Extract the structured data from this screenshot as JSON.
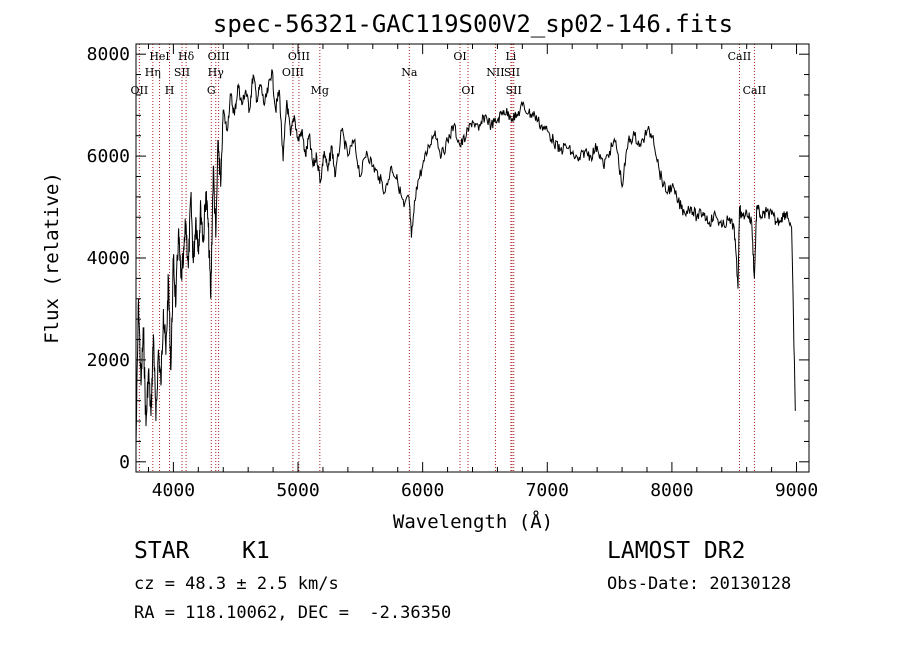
{
  "chart_data": {
    "type": "line",
    "title": "spec-56321-GAC119S00V2_sp02-146.fits",
    "xlabel": "Wavelength (Å)",
    "ylabel": "Flux (relative)",
    "xlim": [
      3700,
      9100
    ],
    "ylim": [
      -200,
      8200
    ],
    "x_ticks": [
      4000,
      5000,
      6000,
      7000,
      8000,
      9000
    ],
    "x_tick_labels": [
      "4000",
      "5000",
      "6000",
      "7000",
      "8000",
      "9000"
    ],
    "y_ticks": [
      0,
      2000,
      4000,
      6000,
      8000
    ],
    "y_tick_labels": [
      "0",
      "2000",
      "4000",
      "6000",
      "8000"
    ],
    "series": [
      {
        "name": "flux",
        "x": [
          3700,
          3720,
          3740,
          3760,
          3780,
          3800,
          3820,
          3840,
          3860,
          3880,
          3900,
          3920,
          3940,
          3960,
          3980,
          4000,
          4020,
          4040,
          4060,
          4080,
          4100,
          4120,
          4140,
          4160,
          4180,
          4200,
          4220,
          4240,
          4260,
          4280,
          4300,
          4320,
          4340,
          4360,
          4380,
          4400,
          4430,
          4460,
          4490,
          4520,
          4550,
          4580,
          4610,
          4640,
          4670,
          4700,
          4730,
          4760,
          4790,
          4820,
          4850,
          4880,
          4910,
          4940,
          4970,
          5000,
          5030,
          5060,
          5090,
          5120,
          5150,
          5180,
          5210,
          5240,
          5270,
          5300,
          5350,
          5400,
          5450,
          5500,
          5550,
          5600,
          5650,
          5700,
          5750,
          5800,
          5850,
          5890,
          5910,
          5950,
          6000,
          6050,
          6100,
          6150,
          6200,
          6250,
          6300,
          6350,
          6400,
          6450,
          6500,
          6550,
          6600,
          6650,
          6700,
          6750,
          6800,
          6850,
          6900,
          6950,
          7000,
          7050,
          7100,
          7150,
          7200,
          7250,
          7300,
          7350,
          7400,
          7450,
          7500,
          7550,
          7600,
          7650,
          7700,
          7750,
          7800,
          7850,
          7900,
          7950,
          8000,
          8050,
          8100,
          8150,
          8200,
          8250,
          8300,
          8350,
          8400,
          8450,
          8500,
          8530,
          8542,
          8560,
          8600,
          8640,
          8662,
          8680,
          8720,
          8760,
          8800,
          8840,
          8880,
          8920,
          8960,
          8990
        ],
        "y": [
          300,
          3200,
          1500,
          2600,
          700,
          1800,
          900,
          2500,
          800,
          2200,
          1500,
          3000,
          2100,
          3600,
          1800,
          4000,
          3100,
          4500,
          3600,
          3900,
          4700,
          3800,
          5200,
          3900,
          4800,
          4200,
          5000,
          4300,
          5300,
          4600,
          3200,
          5800,
          4400,
          6300,
          5400,
          6900,
          6500,
          7200,
          6800,
          7400,
          7000,
          7300,
          6900,
          7600,
          7100,
          7400,
          7000,
          7300,
          7700,
          6900,
          7300,
          5900,
          7100,
          6400,
          6800,
          6300,
          6500,
          6000,
          6400,
          5800,
          6000,
          5500,
          6100,
          5700,
          6200,
          5600,
          6500,
          6000,
          6300,
          5600,
          6100,
          5800,
          5600,
          5300,
          5800,
          5500,
          5000,
          5200,
          4400,
          5400,
          5800,
          6200,
          6500,
          6000,
          6300,
          6600,
          6200,
          6400,
          6700,
          6500,
          6800,
          6600,
          6700,
          6900,
          6800,
          6750,
          7000,
          6850,
          6800,
          6600,
          6500,
          6300,
          6100,
          6200,
          6050,
          5900,
          6100,
          6000,
          6200,
          5800,
          6100,
          6300,
          5400,
          6300,
          6400,
          6200,
          6500,
          6400,
          5700,
          5300,
          5400,
          5100,
          4900,
          5000,
          4800,
          4900,
          4700,
          4850,
          4600,
          4750,
          4600,
          3400,
          5000,
          4800,
          4900,
          4700,
          3600,
          5000,
          4800,
          4900,
          4850,
          4700,
          4800,
          4900,
          4600,
          1000
        ]
      }
    ],
    "lines": [
      {
        "name": "OII",
        "x": 3727,
        "row": 2
      },
      {
        "name": "Hη",
        "x": 3835,
        "row": 1
      },
      {
        "name": "HeI",
        "x": 3889,
        "row": 0
      },
      {
        "name": "H",
        "x": 3969,
        "row": 2
      },
      {
        "name": "SII",
        "x": 4069,
        "row": 1
      },
      {
        "name": "Hδ",
        "x": 4102,
        "row": 0
      },
      {
        "name": "G",
        "x": 4304,
        "row": 2
      },
      {
        "name": "Hγ",
        "x": 4340,
        "row": 1
      },
      {
        "name": "OIII",
        "x": 4363,
        "row": 0
      },
      {
        "name": "OIII",
        "x": 4959,
        "row": 1
      },
      {
        "name": "OIII",
        "x": 5007,
        "row": 0
      },
      {
        "name": "Mg",
        "x": 5175,
        "row": 2
      },
      {
        "name": "Na",
        "x": 5893,
        "row": 1
      },
      {
        "name": "OI",
        "x": 6300,
        "row": 0
      },
      {
        "name": "OI",
        "x": 6364,
        "row": 2
      },
      {
        "name": "NII",
        "x": 6584,
        "row": 1
      },
      {
        "name": "Li",
        "x": 6708,
        "row": 0
      },
      {
        "name": "SII",
        "x": 6717,
        "row": 1
      },
      {
        "name": "SII",
        "x": 6731,
        "row": 2
      },
      {
        "name": "CaII",
        "x": 8542,
        "row": 0
      },
      {
        "name": "CaII",
        "x": 8662,
        "row": 2
      }
    ]
  },
  "info": {
    "class_label": "STAR",
    "subclass": "K1",
    "cz": "cz = 48.3 ± 2.5 km/s",
    "radec": "RA = 118.10062, DEC =  -2.36350",
    "survey": "LAMOST DR2",
    "obs_date": "Obs-Date: 20130128"
  },
  "colors": {
    "spectrum": "#000000",
    "line_markers": "#b22222",
    "axes": "#000000"
  }
}
